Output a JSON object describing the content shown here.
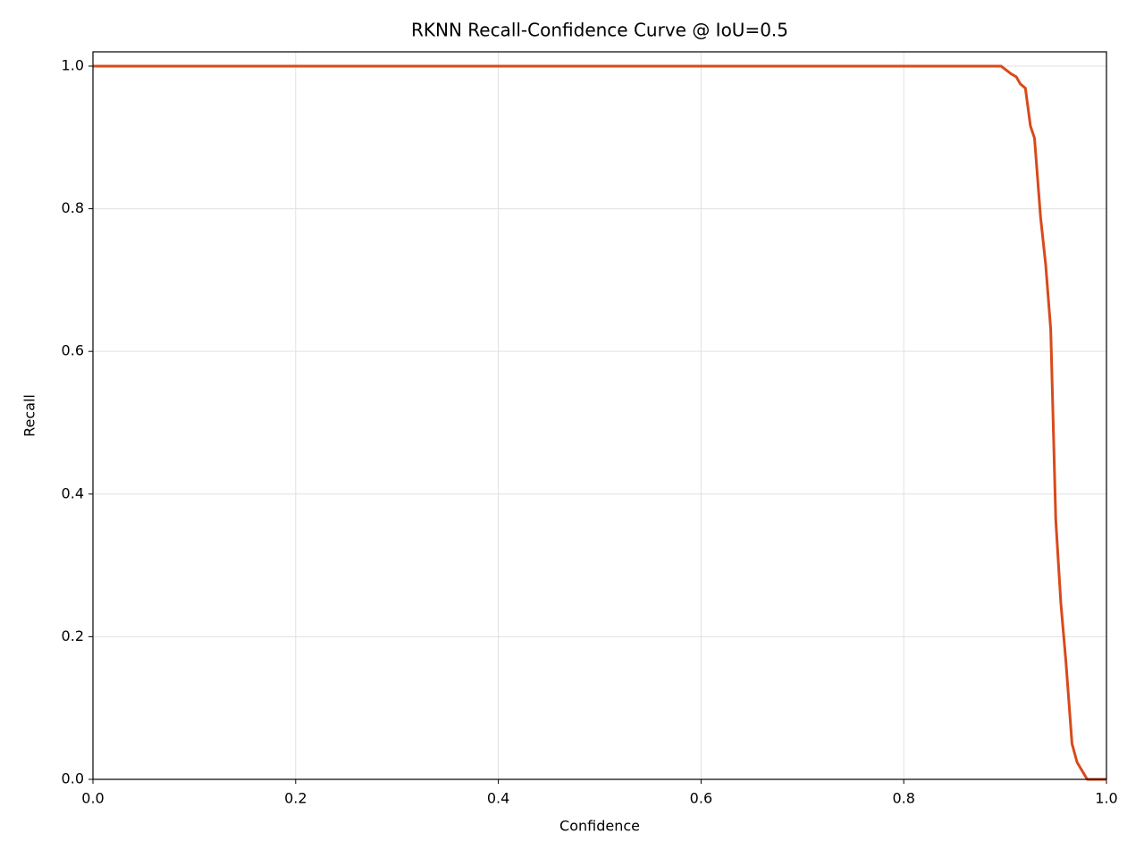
{
  "chart_data": {
    "type": "line",
    "title": "RKNN Recall-Confidence Curve @ IoU=0.5",
    "xlabel": "Confidence",
    "ylabel": "Recall",
    "x": [
      0,
      0.896,
      0.906,
      0.911,
      0.915,
      0.92,
      0.925,
      0.929,
      0.935,
      0.94,
      0.945,
      0.95,
      0.955,
      0.96,
      0.966,
      0.971,
      0.981,
      1.0
    ],
    "series": [
      {
        "color": "#d84a1b",
        "values": [
          1.0,
          1.0,
          0.989,
          0.985,
          0.975,
          0.969,
          0.916,
          0.899,
          0.788,
          0.722,
          0.631,
          0.363,
          0.247,
          0.165,
          0.05,
          0.024,
          0,
          0
        ]
      }
    ],
    "xlim": [
      0,
      1
    ],
    "ylim": [
      0,
      1.02
    ],
    "xticks": [
      {
        "value": 0,
        "label": "0.0"
      },
      0.2,
      0.4,
      0.6,
      0.8,
      {
        "value": 1,
        "label": "1.0"
      }
    ],
    "yticks": [
      {
        "value": 0,
        "label": "0.0"
      },
      0.2,
      0.4,
      0.6,
      0.8,
      {
        "value": 1,
        "label": "1.0"
      }
    ],
    "grid": true
  }
}
